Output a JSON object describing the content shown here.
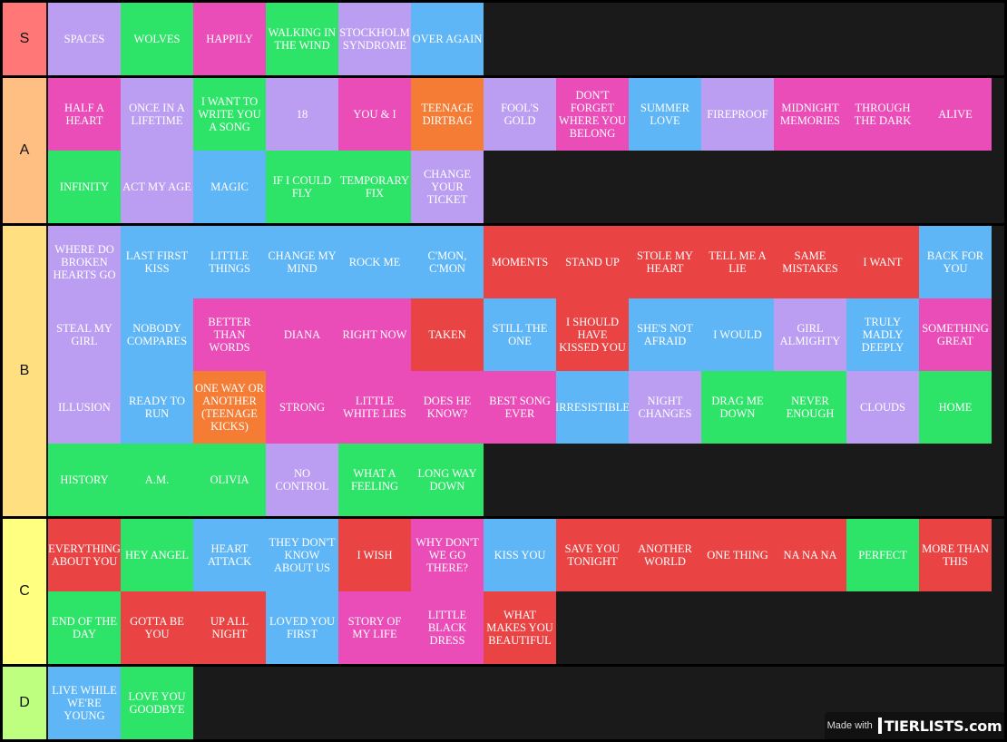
{
  "colors": {
    "purple": "#bb9ef1",
    "green": "#2ee468",
    "pink": "#ea4cb8",
    "blue": "#5fb6f6",
    "orange": "#f57c34",
    "red": "#ea4343",
    "row_bg": "#1a1a1a"
  },
  "tiers": [
    {
      "label": "S",
      "color": "#ff7777",
      "rows": 1,
      "items": [
        {
          "text": "SPACES",
          "color": "purple"
        },
        {
          "text": "WOLVES",
          "color": "green"
        },
        {
          "text": "HAPPILY",
          "color": "pink"
        },
        {
          "text": "WALKING IN THE WIND",
          "color": "green"
        },
        {
          "text": "STOCKHOLM SYNDROME",
          "color": "purple"
        },
        {
          "text": "OVER AGAIN",
          "color": "blue"
        }
      ]
    },
    {
      "label": "A",
      "color": "#ffbe82",
      "rows": 2,
      "items": [
        {
          "text": "HALF A HEART",
          "color": "pink"
        },
        {
          "text": "ONCE IN A LIFETIME",
          "color": "purple"
        },
        {
          "text": "I WANT TO WRITE YOU A SONG",
          "color": "green"
        },
        {
          "text": "18",
          "color": "purple"
        },
        {
          "text": "YOU & I",
          "color": "pink"
        },
        {
          "text": "TEENAGE DIRTBAG",
          "color": "orange"
        },
        {
          "text": "FOOL'S GOLD",
          "color": "purple"
        },
        {
          "text": "DON'T FORGET WHERE YOU BELONG",
          "color": "pink"
        },
        {
          "text": "SUMMER LOVE",
          "color": "blue"
        },
        {
          "text": "FIREPROOF",
          "color": "purple"
        },
        {
          "text": "MIDNIGHT MEMORIES",
          "color": "pink"
        },
        {
          "text": "THROUGH THE DARK",
          "color": "pink"
        },
        {
          "text": "ALIVE",
          "color": "pink"
        },
        {
          "text": "INFINITY",
          "color": "green"
        },
        {
          "text": "ACT MY AGE",
          "color": "purple"
        },
        {
          "text": "MAGIC",
          "color": "blue"
        },
        {
          "text": "IF I COULD FLY",
          "color": "green"
        },
        {
          "text": "TEMPORARY FIX",
          "color": "green"
        },
        {
          "text": "CHANGE YOUR TICKET",
          "color": "purple"
        }
      ]
    },
    {
      "label": "B",
      "color": "#ffdf80",
      "rows": 4,
      "items": [
        {
          "text": "WHERE DO BROKEN HEARTS GO",
          "color": "purple"
        },
        {
          "text": "LAST FIRST KISS",
          "color": "blue"
        },
        {
          "text": "LITTLE THINGS",
          "color": "blue"
        },
        {
          "text": "CHANGE MY MIND",
          "color": "blue"
        },
        {
          "text": "ROCK ME",
          "color": "blue"
        },
        {
          "text": "C'MON, C'MON",
          "color": "blue"
        },
        {
          "text": "MOMENTS",
          "color": "red"
        },
        {
          "text": "STAND UP",
          "color": "red"
        },
        {
          "text": "STOLE MY HEART",
          "color": "red"
        },
        {
          "text": "TELL ME A LIE",
          "color": "red"
        },
        {
          "text": "SAME MISTAKES",
          "color": "red"
        },
        {
          "text": "I WANT",
          "color": "red"
        },
        {
          "text": "BACK FOR YOU",
          "color": "blue"
        },
        {
          "text": "STEAL MY GIRL",
          "color": "purple"
        },
        {
          "text": "NOBODY COMPARES",
          "color": "blue"
        },
        {
          "text": "BETTER THAN WORDS",
          "color": "pink"
        },
        {
          "text": "DIANA",
          "color": "pink"
        },
        {
          "text": "RIGHT NOW",
          "color": "pink"
        },
        {
          "text": "TAKEN",
          "color": "red"
        },
        {
          "text": "STILL THE ONE",
          "color": "blue"
        },
        {
          "text": "I SHOULD HAVE KISSED YOU",
          "color": "red"
        },
        {
          "text": "SHE'S NOT AFRAID",
          "color": "blue"
        },
        {
          "text": "I WOULD",
          "color": "blue"
        },
        {
          "text": "GIRL ALMIGHTY",
          "color": "purple"
        },
        {
          "text": "TRULY MADLY DEEPLY",
          "color": "blue"
        },
        {
          "text": "SOMETHING GREAT",
          "color": "pink"
        },
        {
          "text": "ILLUSION",
          "color": "purple"
        },
        {
          "text": "READY TO RUN",
          "color": "blue"
        },
        {
          "text": "ONE WAY OR ANOTHER (TEENAGE KICKS)",
          "color": "orange"
        },
        {
          "text": "STRONG",
          "color": "pink"
        },
        {
          "text": "LITTLE WHITE LIES",
          "color": "pink"
        },
        {
          "text": "DOES HE KNOW?",
          "color": "pink"
        },
        {
          "text": "BEST SONG EVER",
          "color": "pink"
        },
        {
          "text": "IRRESISTIBLE",
          "color": "blue"
        },
        {
          "text": "NIGHT CHANGES",
          "color": "purple"
        },
        {
          "text": "DRAG ME DOWN",
          "color": "green"
        },
        {
          "text": "NEVER ENOUGH",
          "color": "green"
        },
        {
          "text": "CLOUDS",
          "color": "purple"
        },
        {
          "text": "HOME",
          "color": "green"
        },
        {
          "text": "HISTORY",
          "color": "green"
        },
        {
          "text": "A.M.",
          "color": "green"
        },
        {
          "text": "OLIVIA",
          "color": "green"
        },
        {
          "text": "NO CONTROL",
          "color": "purple"
        },
        {
          "text": "WHAT A FEELING",
          "color": "green"
        },
        {
          "text": "LONG WAY DOWN",
          "color": "green"
        }
      ]
    },
    {
      "label": "C",
      "color": "#ffff80",
      "rows": 2,
      "items": [
        {
          "text": "EVERYTHING ABOUT YOU",
          "color": "red"
        },
        {
          "text": "HEY ANGEL",
          "color": "green"
        },
        {
          "text": "HEART ATTACK",
          "color": "blue"
        },
        {
          "text": "THEY DON'T KNOW ABOUT US",
          "color": "blue"
        },
        {
          "text": "I WISH",
          "color": "red"
        },
        {
          "text": "WHY DON'T WE GO THERE?",
          "color": "pink"
        },
        {
          "text": "KISS YOU",
          "color": "blue"
        },
        {
          "text": "SAVE YOU TONIGHT",
          "color": "red"
        },
        {
          "text": "ANOTHER WORLD",
          "color": "red"
        },
        {
          "text": "ONE THING",
          "color": "red"
        },
        {
          "text": "NA NA NA",
          "color": "red"
        },
        {
          "text": "PERFECT",
          "color": "green"
        },
        {
          "text": "MORE THAN THIS",
          "color": "red"
        },
        {
          "text": "END OF THE DAY",
          "color": "green"
        },
        {
          "text": "GOTTA BE YOU",
          "color": "red"
        },
        {
          "text": "UP ALL NIGHT",
          "color": "red"
        },
        {
          "text": "LOVED YOU FIRST",
          "color": "blue"
        },
        {
          "text": "STORY OF MY LIFE",
          "color": "pink"
        },
        {
          "text": "LITTLE BLACK DRESS",
          "color": "pink"
        },
        {
          "text": "WHAT MAKES YOU BEAUTIFUL",
          "color": "red"
        }
      ]
    },
    {
      "label": "D",
      "color": "#bfff7f",
      "rows": 1,
      "items": [
        {
          "text": "LIVE WHILE WE'RE YOUNG",
          "color": "blue"
        },
        {
          "text": "LOVE YOU GOODBYE",
          "color": "green"
        }
      ]
    }
  ],
  "watermark": {
    "made_with": "Made with",
    "brand": "TIERLISTS.com"
  }
}
